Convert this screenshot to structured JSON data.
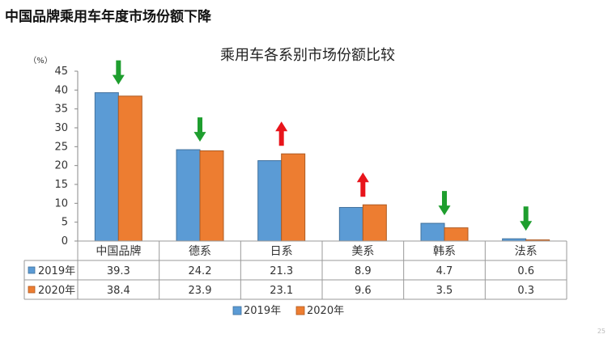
{
  "slide": {
    "title": "中国品牌乘用车年度市场份额下降",
    "page_number": "25"
  },
  "chart_data": {
    "type": "bar",
    "title": "乘用车各系别市场份额比较",
    "unit_label": "（%）",
    "categories": [
      "中国品牌",
      "德系",
      "日系",
      "美系",
      "韩系",
      "法系"
    ],
    "series": [
      {
        "name": "2019年",
        "values": [
          39.3,
          24.2,
          21.3,
          8.9,
          4.7,
          0.6
        ],
        "color": "#5B9BD5",
        "border": "#41719C"
      },
      {
        "name": "2020年",
        "values": [
          38.4,
          23.9,
          23.1,
          9.6,
          3.5,
          0.3
        ],
        "color": "#ED7D31",
        "border": "#AE5A21"
      }
    ],
    "table_values": [
      [
        "39.3",
        "24.2",
        "21.3",
        "8.9",
        "4.7",
        "0.6"
      ],
      [
        "38.4",
        "23.9",
        "23.1",
        "9.6",
        "3.5",
        "0.3"
      ]
    ],
    "trend": [
      "down",
      "down",
      "up",
      "up",
      "down",
      "down"
    ],
    "trend_colors": {
      "down": "#1E9E2E",
      "up": "#E8141B"
    },
    "ylim": [
      0,
      45
    ],
    "yticks": [
      0,
      5,
      10,
      15,
      20,
      25,
      30,
      35,
      40,
      45
    ],
    "grid": false,
    "legend_position": "bottom",
    "data_table": true
  }
}
